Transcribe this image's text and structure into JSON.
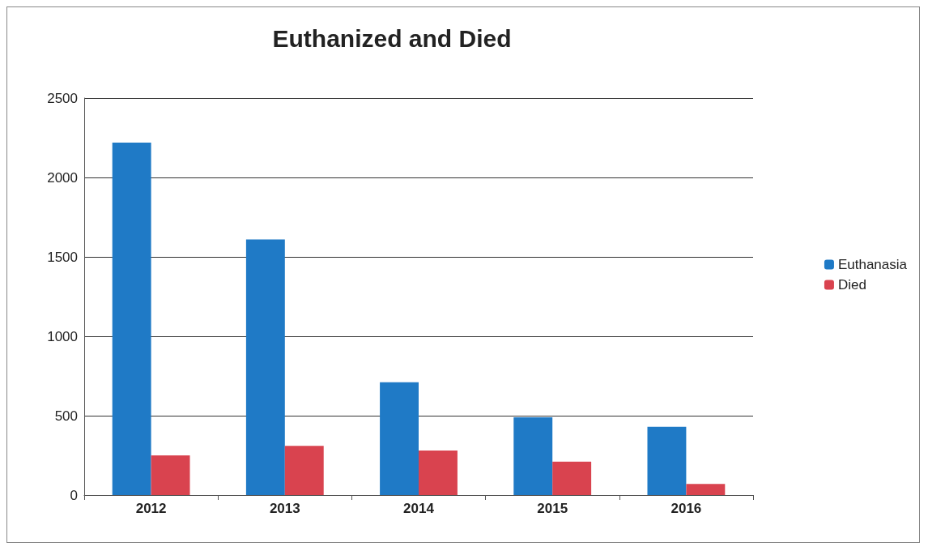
{
  "chart_data": {
    "type": "bar",
    "title": "Euthanized and Died",
    "categories": [
      "2012",
      "2013",
      "2014",
      "2015",
      "2016"
    ],
    "series": [
      {
        "name": "Euthanasia",
        "color": "#1f7ac6",
        "values": [
          2220,
          1610,
          710,
          490,
          430
        ]
      },
      {
        "name": "Died",
        "color": "#d9434f",
        "values": [
          250,
          310,
          280,
          210,
          70
        ]
      }
    ],
    "ylim": [
      0,
      2500
    ],
    "yticks": [
      0,
      500,
      1000,
      1500,
      2000,
      2500
    ],
    "grid": "y",
    "legend": "right"
  }
}
